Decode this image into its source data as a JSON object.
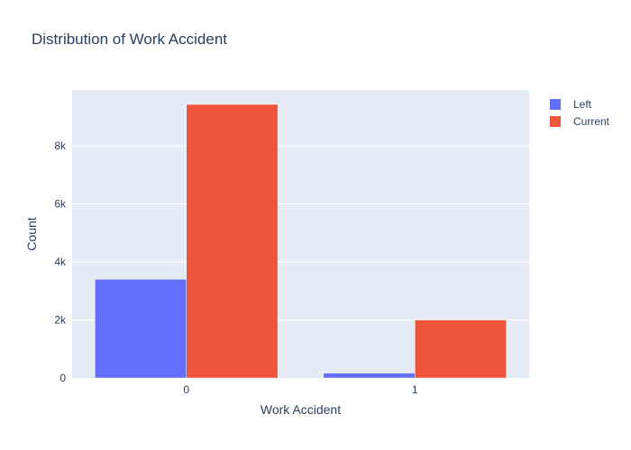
{
  "chart_data": {
    "type": "bar",
    "title": "Distribution of Work Accident",
    "xlabel": "Work Accident",
    "ylabel": "Count",
    "categories": [
      "0",
      "1"
    ],
    "series": [
      {
        "name": "Left",
        "values": [
          3402,
          169
        ],
        "color": "#636efa"
      },
      {
        "name": "Current",
        "values": [
          9428,
          2000
        ],
        "color": "#ef553b"
      }
    ],
    "ylim": [
      0,
      9925
    ],
    "yticks": [
      0,
      2000,
      4000,
      6000,
      8000
    ],
    "ytick_labels": [
      "0",
      "2k",
      "4k",
      "6k",
      "8k"
    ],
    "grid": true,
    "legend_position": "top-right",
    "plot_background": "#e5ecf6"
  }
}
